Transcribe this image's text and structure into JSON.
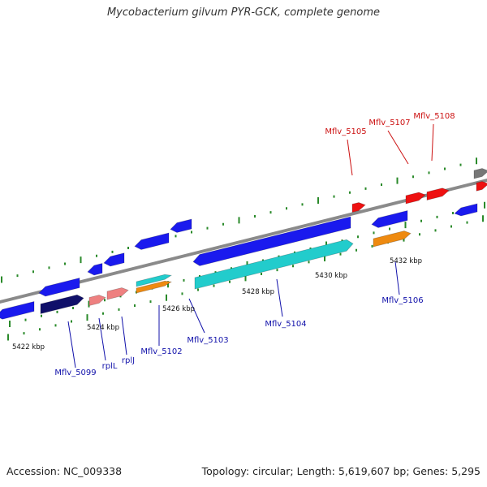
{
  "title": "Mycobacterium gilvum PYR-GCK, complete genome",
  "footer": {
    "accession": "Accession: NC_009338",
    "stats": "Topology: circular; Length: 5,619,607 bp; Genes: 5,295"
  },
  "colors": {
    "backbone": "#8a8a8a",
    "tick": "#2a8a2a",
    "cds_forward": "#1a1aee",
    "cds_dark": "#10106a",
    "rna": "#ee8080",
    "cyan_feature": "#22cccc",
    "orange_feature": "#ee8a10",
    "red_highlight": "#ee1111",
    "gray_feature": "#777777",
    "label_blue": "#1111aa",
    "label_red": "#cc1111"
  },
  "scale_labels": [
    "5422 kbp",
    "5424 kbp",
    "5426 kbp",
    "5428 kbp",
    "5430 kbp",
    "5432 kbp"
  ],
  "gene_labels": [
    {
      "name": "Mflv_5099",
      "color": "blue"
    },
    {
      "name": "rplL",
      "color": "blue"
    },
    {
      "name": "rplJ",
      "color": "blue"
    },
    {
      "name": "Mflv_5102",
      "color": "blue"
    },
    {
      "name": "Mflv_5103",
      "color": "blue"
    },
    {
      "name": "Mflv_5104",
      "color": "blue"
    },
    {
      "name": "Mflv_5106",
      "color": "blue"
    },
    {
      "name": "Mflv_5105",
      "color": "red"
    },
    {
      "name": "Mflv_5107",
      "color": "red"
    },
    {
      "name": "Mflv_5108",
      "color": "red"
    }
  ]
}
